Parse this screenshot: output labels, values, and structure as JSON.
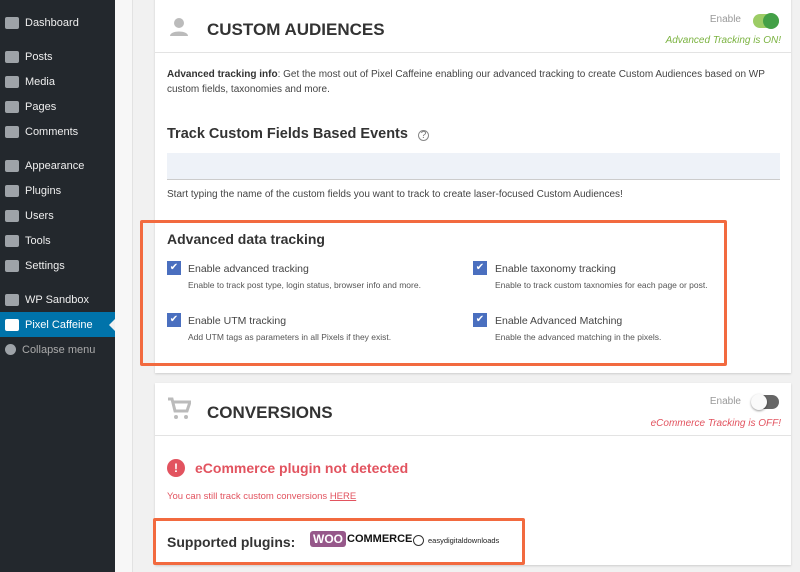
{
  "sidebar": {
    "items": [
      {
        "label": "Dashboard",
        "icon": "dashboard-icon"
      },
      {
        "label": "Posts",
        "icon": "pin-icon"
      },
      {
        "label": "Media",
        "icon": "media-icon"
      },
      {
        "label": "Pages",
        "icon": "pages-icon"
      },
      {
        "label": "Comments",
        "icon": "comment-icon"
      },
      {
        "label": "Appearance",
        "icon": "brush-icon"
      },
      {
        "label": "Plugins",
        "icon": "plugin-icon"
      },
      {
        "label": "Users",
        "icon": "user-icon"
      },
      {
        "label": "Tools",
        "icon": "wrench-icon"
      },
      {
        "label": "Settings",
        "icon": "settings-icon"
      },
      {
        "label": "WP Sandbox",
        "icon": "sandbox-icon"
      },
      {
        "label": "Pixel Caffeine",
        "icon": "cup-icon",
        "active": true
      },
      {
        "label": "Collapse menu",
        "icon": "collapse-icon"
      }
    ]
  },
  "custom_audiences": {
    "title": "CUSTOM AUDIENCES",
    "enable_label": "Enable",
    "enabled": true,
    "status": "Advanced Tracking is ON!",
    "status_color": "#7cb342",
    "info_label": "Advanced tracking info",
    "info_text": ": Get the most out of Pixel Caffeine enabling our advanced tracking to create Custom Audiences based on WP custom fields, taxonomies and more.",
    "track_title": "Track Custom Fields Based Events",
    "field_value": "",
    "field_help": "Start typing the name of the custom fields you want to track to create laser-focused Custom Audiences!",
    "adv_title": "Advanced data tracking",
    "options": [
      {
        "label": "Enable advanced tracking",
        "desc": "Enable to track post type, login status, browser info and more.",
        "checked": true
      },
      {
        "label": "Enable taxonomy tracking",
        "desc": "Enable to track custom taxnomies for each page or post.",
        "checked": true
      },
      {
        "label": "Enable UTM tracking",
        "desc": "Add UTM tags as parameters in all Pixels if they exist.",
        "checked": true
      },
      {
        "label": "Enable Advanced Matching",
        "desc": "Enable the advanced matching in the pixels.",
        "checked": true
      }
    ]
  },
  "conversions": {
    "title": "CONVERSIONS",
    "enable_label": "Enable",
    "enabled": false,
    "status": "eCommerce Tracking is OFF!",
    "status_color": "#e2535f",
    "error": "eCommerce plugin not detected",
    "note": "You can still track custom conversions ",
    "note_link": "HERE",
    "supported_label": "Supported plugins:",
    "plugins": [
      "WOO",
      "COMMERCE",
      "easydigitaldownloads"
    ]
  },
  "colors": {
    "accent": "#0073aa",
    "highlight": "#f26a3f",
    "checkbox": "#4a6fbf"
  }
}
